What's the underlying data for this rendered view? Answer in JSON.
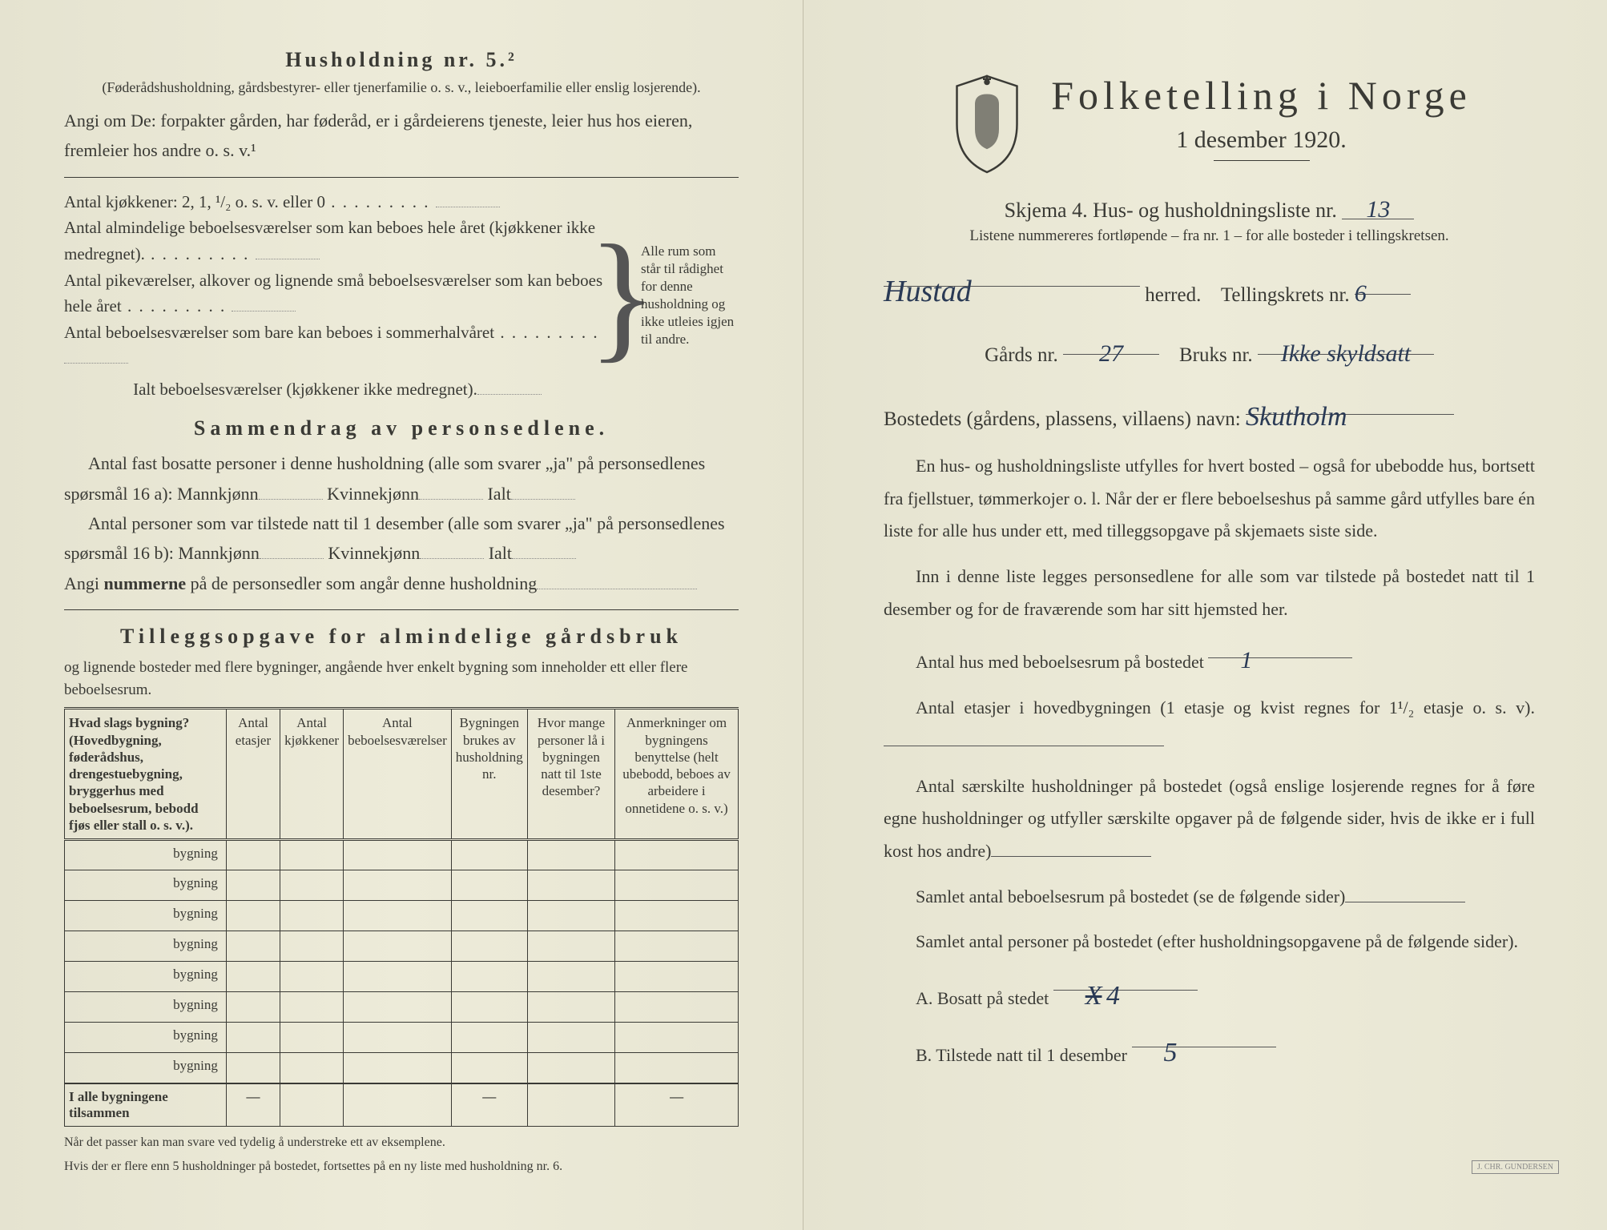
{
  "left": {
    "heading": "Husholdning nr. 5.²",
    "intro1": "(Føderådshusholdning, gårdsbestyrer- eller tjenerfamilie o. s. v., leieboerfamilie eller enslig losjerende).",
    "intro2": "Angi om De:  forpakter gården, har føderåd, er i gårdeierens tjeneste, leier hus hos eieren, fremleier hos andre o. s. v.¹",
    "kitchen_line": "Antal kjøkkener: 2, 1, ¹/₂ o. s. v. eller 0",
    "room_lines": [
      "Antal almindelige beboelsesværelser som kan beboes hele året (kjøkkener ikke medregnet).",
      "Antal pikeværelser, alkover og lignende små beboelsesværelser som kan beboes hele året",
      "Antal beboelsesværelser som bare kan beboes i sommerhalvåret"
    ],
    "total_line": "Ialt beboelsesværelser  (kjøkkener ikke medregnet).",
    "brace_note": "Alle rum som står til rådighet for denne husholdning og ikke utleies igjen til andre.",
    "summary_heading": "Sammendrag av personsedlene.",
    "summary_p1a": "Antal fast bosatte personer i denne husholdning (alle som svarer „ja\" på personsedlenes spørsmål 16 a): Mannkjønn",
    "summary_kv": "Kvinnekjønn",
    "summary_ialt": "Ialt",
    "summary_p2": "Antal personer som var tilstede natt til 1 desember (alle som svarer „ja\" på personsedlenes spørsmål 16 b): Mannkjønn",
    "summary_p3_pre": "Angi ",
    "summary_p3_bold": "nummerne",
    "summary_p3_post": " på de personsedler som angår denne husholdning",
    "tillegg_heading": "Tilleggsopgave for almindelige gårdsbruk",
    "tillegg_sub": "og lignende bosteder med flere bygninger, angående hver enkelt bygning som inneholder ett eller flere beboelsesrum.",
    "table": {
      "headers": [
        "Hvad slags bygning?\n(Hovedbygning, føderådshus, drengestuebygning, bryggerhus med beboelsesrum, bebodd fjøs eller stall o. s. v.).",
        "Antal etasjer",
        "Antal kjøkkener",
        "Antal beboelsesværelser",
        "Bygningen brukes av husholdning nr.",
        "Hvor mange personer lå i bygningen natt til 1ste desember?",
        "Anmerkninger om bygningens benyttelse (helt ubebodd, beboes av arbeidere i onnetidene o. s. v.)"
      ],
      "row_label": "bygning",
      "total_label": "I alle bygningene tilsammen",
      "row_count": 8
    },
    "footnote1": "Når det passer kan man svare ved tydelig å understreke ett av eksemplene.",
    "footnote2": "Hvis der er flere enn 5 husholdninger på bostedet, fortsettes på en ny liste med husholdning nr. 6."
  },
  "right": {
    "title": "Folketelling i Norge",
    "date": "1 desember 1920.",
    "skjema_pre": "Skjema 4.  Hus- og husholdningsliste nr.",
    "skjema_nr": "13",
    "list_note": "Listene nummereres fortløpende – fra nr. 1 – for alle bosteder i tellingskretsen.",
    "herred_value": "Hustad",
    "herred_label": "herred.",
    "krets_label": "Tellingskrets nr.",
    "krets_value": "6",
    "gards_label": "Gårds nr.",
    "gards_value": "27",
    "bruks_label": "Bruks nr.",
    "bruks_value": "Ikke skyldsatt",
    "bosted_label": "Bostedets (gårdens, plassens, villaens) navn:",
    "bosted_value": "Skutholm",
    "para1": "En hus- og husholdningsliste utfylles for hvert bosted – også for ubebodde hus, bortsett fra fjellstuer, tømmerkojer o. l.  Når der er flere beboelseshus på samme gård utfylles bare én liste for alle hus under ett, med tilleggsopgave på skjemaets siste side.",
    "para2": "Inn i denne liste legges personsedlene for alle som var tilstede på bostedet natt til 1 desember og for de fraværende som har sitt hjemsted her.",
    "q1_label": "Antal hus med beboelsesrum på bostedet",
    "q1_value": "1",
    "q2": "Antal etasjer i hovedbygningen (1 etasje og kvist regnes for 1¹/₂ etasje o. s. v).",
    "q3": "Antal særskilte husholdninger på bostedet (også enslige losjerende regnes for å føre egne husholdninger og utfyller særskilte opgaver på de følgende sider, hvis de ikke er i full kost hos andre)",
    "q4": "Samlet antal beboelsesrum på bostedet (se de følgende sider)",
    "q5": "Samlet antal personer på bostedet (efter husholdningsopgavene på de følgende sider).",
    "qA_label": "A.  Bosatt på stedet",
    "qA_value": "4",
    "qB_label": "B.  Tilstede natt til 1 desember",
    "qB_value": "5"
  }
}
